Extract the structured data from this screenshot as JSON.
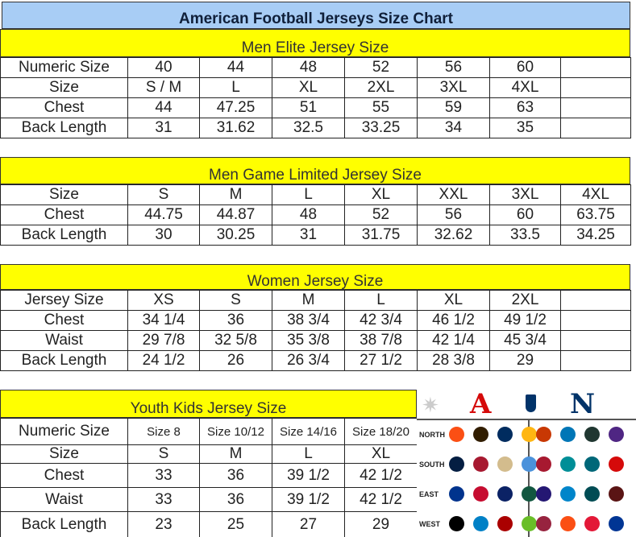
{
  "title": "American Football Jerseys Size Chart",
  "colors": {
    "title_bg": "#a8cdf5",
    "section_bg": "#ffff00"
  },
  "sections": [
    {
      "heading": "Men Elite Jersey Size",
      "rows": [
        [
          "Numeric Size",
          "40",
          "44",
          "48",
          "52",
          "56",
          "60",
          ""
        ],
        [
          "Size",
          "S / M",
          "L",
          "XL",
          "2XL",
          "3XL",
          "4XL",
          ""
        ],
        [
          "Chest",
          "44",
          "47.25",
          "51",
          "55",
          "59",
          "63",
          ""
        ],
        [
          "Back Length",
          "31",
          "31.62",
          "32.5",
          "33.25",
          "34",
          "35",
          ""
        ]
      ]
    },
    {
      "heading": "Men Game Limited Jersey Size",
      "rows": [
        [
          "Size",
          "S",
          "M",
          "L",
          "XL",
          "XXL",
          "3XL",
          "4XL"
        ],
        [
          "Chest",
          "44.75",
          "44.87",
          "48",
          "52",
          "56",
          "60",
          "63.75"
        ],
        [
          "Back Length",
          "30",
          "30.25",
          "31",
          "31.75",
          "32.62",
          "33.5",
          "34.25"
        ]
      ]
    },
    {
      "heading": "Women Jersey Size",
      "rows": [
        [
          "Jersey Size",
          "XS",
          "S",
          "M",
          "L",
          "XL",
          "2XL",
          ""
        ],
        [
          "Chest",
          "34 1/4",
          "36",
          "38 3/4",
          "42 3/4",
          "46 1/2",
          "49 1/2",
          ""
        ],
        [
          "Waist",
          "29 7/8",
          "32 5/8",
          "35 3/8",
          "38 7/8",
          "42 1/4",
          "45 3/4",
          ""
        ],
        [
          "Back Length",
          "24 1/2",
          "26",
          "26 3/4",
          "27 1/2",
          "28 3/8",
          "29",
          ""
        ]
      ]
    },
    {
      "heading": "Youth Kids Jersey Size",
      "rows": [
        [
          "Numeric Size",
          "Size 8",
          "Size 10/12",
          "Size 14/16",
          "Size 18/20"
        ],
        [
          "Size",
          "S",
          "M",
          "L",
          "XL"
        ],
        [
          "Chest",
          "33",
          "36",
          "39 1/2",
          "42 1/2"
        ],
        [
          "Waist",
          "33",
          "36",
          "39 1/2",
          "42 1/2"
        ],
        [
          "Back Length",
          "23",
          "25",
          "27",
          "29"
        ]
      ]
    }
  ],
  "logos": {
    "afc": "A",
    "nfc": "N",
    "divisions": [
      "NORTH",
      "SOUTH",
      "EAST",
      "WEST"
    ],
    "afc_team_colors": [
      [
        "#fb4f14",
        "#311d00",
        "#002c5f",
        "#ffb612"
      ],
      [
        "#041e42",
        "#a71930",
        "#d3bc8d",
        "#4b92db"
      ],
      [
        "#00338d",
        "#c60c30",
        "#0b2265",
        "#125740"
      ],
      [
        "#000000",
        "#0080c6",
        "#aa0000",
        "#69be28"
      ]
    ],
    "nfc_team_colors": [
      [
        "#c83803",
        "#0076b6",
        "#203731",
        "#4f2683"
      ],
      [
        "#a71930",
        "#008e97",
        "#006778",
        "#d50a0a"
      ],
      [
        "#241773",
        "#0085ca",
        "#004c54",
        "#5a1414"
      ],
      [
        "#97233f",
        "#fb4f14",
        "#e31837",
        "#003594"
      ]
    ]
  }
}
